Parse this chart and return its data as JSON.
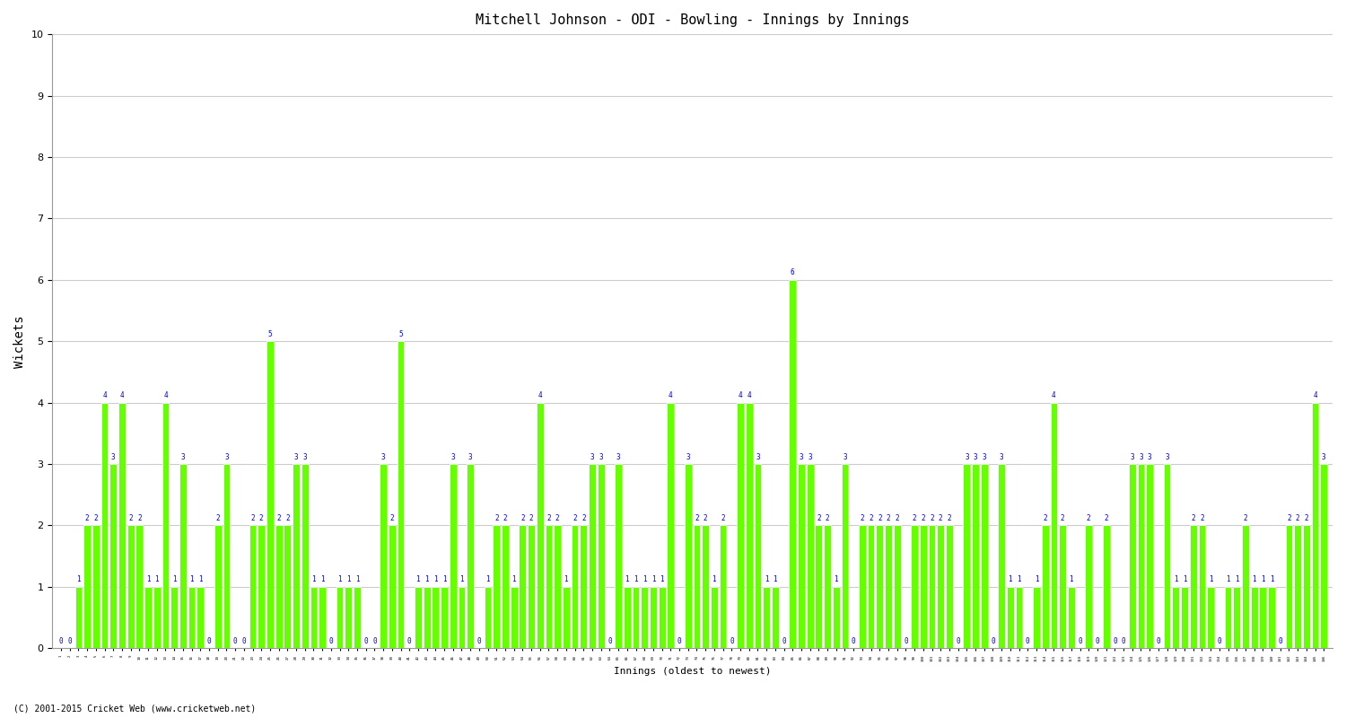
{
  "title": "Mitchell Johnson - ODI - Bowling - Innings by Innings",
  "xlabel": "Innings (oldest to newest)",
  "ylabel": "Wickets",
  "background_color": "#ffffff",
  "bar_color": "#66ff00",
  "bar_edge_color": "#ffffff",
  "label_color": "#0000cc",
  "ylim": [
    0,
    10
  ],
  "yticks": [
    0,
    1,
    2,
    3,
    4,
    5,
    6,
    7,
    8,
    9,
    10
  ],
  "grid_color": "#cccccc",
  "wickets": [
    0,
    0,
    1,
    2,
    2,
    4,
    3,
    4,
    2,
    2,
    1,
    1,
    4,
    1,
    3,
    1,
    1,
    0,
    2,
    3,
    0,
    0,
    2,
    2,
    5,
    2,
    2,
    3,
    3,
    1,
    1,
    0,
    1,
    1,
    1,
    0,
    0,
    3,
    2,
    5,
    0,
    1,
    1,
    1,
    1,
    3,
    1,
    3,
    0,
    1,
    2,
    2,
    1,
    2,
    2,
    4,
    2,
    2,
    1,
    2,
    2,
    3,
    3,
    0,
    3,
    1,
    1,
    1,
    1,
    1,
    4,
    0,
    3,
    2,
    2,
    1,
    2,
    0,
    4,
    4,
    3,
    1,
    1,
    0,
    6,
    3,
    3,
    2,
    2,
    1,
    3,
    0,
    2,
    2,
    2,
    2,
    2,
    0,
    2,
    2,
    2,
    2,
    2,
    0,
    3,
    3,
    3,
    0,
    3,
    1,
    1,
    0,
    1,
    2,
    4,
    2,
    1,
    0,
    2,
    0,
    2,
    0,
    0,
    3,
    3,
    3,
    0,
    3,
    1,
    1,
    2,
    2,
    1,
    0,
    1,
    1,
    2,
    1,
    1,
    1,
    0,
    2,
    2,
    2,
    4,
    3
  ],
  "footer": "(C) 2001-2015 Cricket Web (www.cricketweb.net)"
}
